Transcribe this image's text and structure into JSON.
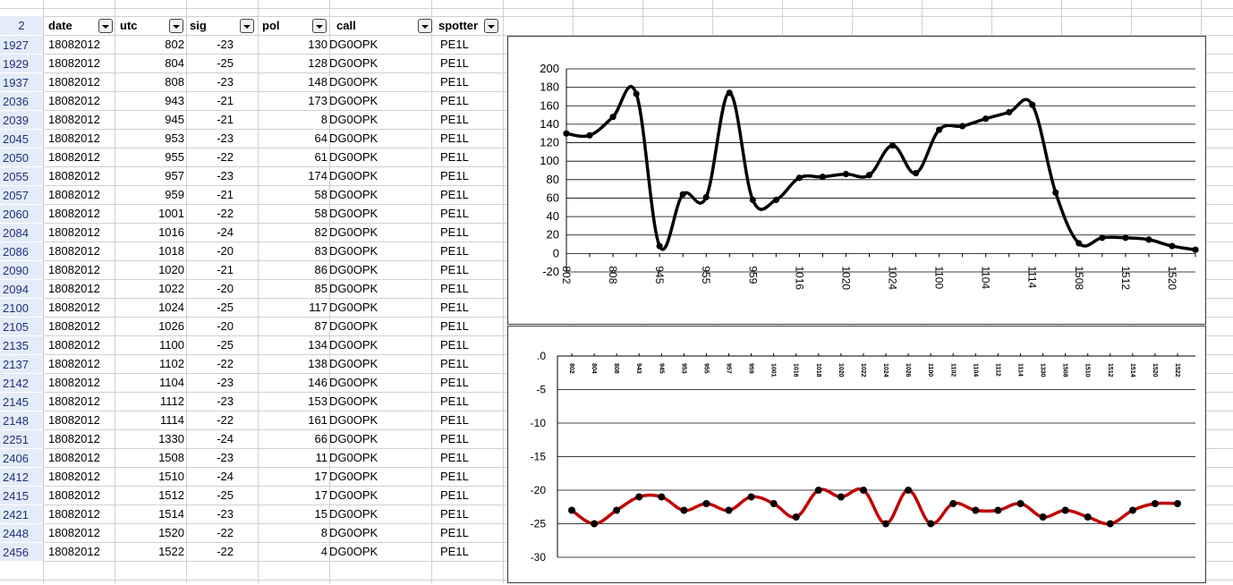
{
  "header": {
    "row_number": "2",
    "columns": [
      "date",
      "utc",
      "sig",
      "pol",
      "call",
      "spotter"
    ]
  },
  "rows": [
    {
      "id": "1927",
      "date": "18082012",
      "utc": "802",
      "sig": "-23",
      "pol": "130",
      "call": "DG0OPK",
      "spotter": "PE1L"
    },
    {
      "id": "1929",
      "date": "18082012",
      "utc": "804",
      "sig": "-25",
      "pol": "128",
      "call": "DG0OPK",
      "spotter": "PE1L"
    },
    {
      "id": "1937",
      "date": "18082012",
      "utc": "808",
      "sig": "-23",
      "pol": "148",
      "call": "DG0OPK",
      "spotter": "PE1L"
    },
    {
      "id": "2036",
      "date": "18082012",
      "utc": "943",
      "sig": "-21",
      "pol": "173",
      "call": "DG0OPK",
      "spotter": "PE1L"
    },
    {
      "id": "2039",
      "date": "18082012",
      "utc": "945",
      "sig": "-21",
      "pol": "8",
      "call": "DG0OPK",
      "spotter": "PE1L"
    },
    {
      "id": "2045",
      "date": "18082012",
      "utc": "953",
      "sig": "-23",
      "pol": "64",
      "call": "DG0OPK",
      "spotter": "PE1L"
    },
    {
      "id": "2050",
      "date": "18082012",
      "utc": "955",
      "sig": "-22",
      "pol": "61",
      "call": "DG0OPK",
      "spotter": "PE1L"
    },
    {
      "id": "2055",
      "date": "18082012",
      "utc": "957",
      "sig": "-23",
      "pol": "174",
      "call": "DG0OPK",
      "spotter": "PE1L"
    },
    {
      "id": "2057",
      "date": "18082012",
      "utc": "959",
      "sig": "-21",
      "pol": "58",
      "call": "DG0OPK",
      "spotter": "PE1L"
    },
    {
      "id": "2060",
      "date": "18082012",
      "utc": "1001",
      "sig": "-22",
      "pol": "58",
      "call": "DG0OPK",
      "spotter": "PE1L"
    },
    {
      "id": "2084",
      "date": "18082012",
      "utc": "1016",
      "sig": "-24",
      "pol": "82",
      "call": "DG0OPK",
      "spotter": "PE1L"
    },
    {
      "id": "2086",
      "date": "18082012",
      "utc": "1018",
      "sig": "-20",
      "pol": "83",
      "call": "DG0OPK",
      "spotter": "PE1L"
    },
    {
      "id": "2090",
      "date": "18082012",
      "utc": "1020",
      "sig": "-21",
      "pol": "86",
      "call": "DG0OPK",
      "spotter": "PE1L"
    },
    {
      "id": "2094",
      "date": "18082012",
      "utc": "1022",
      "sig": "-20",
      "pol": "85",
      "call": "DG0OPK",
      "spotter": "PE1L"
    },
    {
      "id": "2100",
      "date": "18082012",
      "utc": "1024",
      "sig": "-25",
      "pol": "117",
      "call": "DG0OPK",
      "spotter": "PE1L"
    },
    {
      "id": "2105",
      "date": "18082012",
      "utc": "1026",
      "sig": "-20",
      "pol": "87",
      "call": "DG0OPK",
      "spotter": "PE1L"
    },
    {
      "id": "2135",
      "date": "18082012",
      "utc": "1100",
      "sig": "-25",
      "pol": "134",
      "call": "DG0OPK",
      "spotter": "PE1L"
    },
    {
      "id": "2137",
      "date": "18082012",
      "utc": "1102",
      "sig": "-22",
      "pol": "138",
      "call": "DG0OPK",
      "spotter": "PE1L"
    },
    {
      "id": "2142",
      "date": "18082012",
      "utc": "1104",
      "sig": "-23",
      "pol": "146",
      "call": "DG0OPK",
      "spotter": "PE1L"
    },
    {
      "id": "2145",
      "date": "18082012",
      "utc": "1112",
      "sig": "-23",
      "pol": "153",
      "call": "DG0OPK",
      "spotter": "PE1L"
    },
    {
      "id": "2148",
      "date": "18082012",
      "utc": "1114",
      "sig": "-22",
      "pol": "161",
      "call": "DG0OPK",
      "spotter": "PE1L"
    },
    {
      "id": "2251",
      "date": "18082012",
      "utc": "1330",
      "sig": "-24",
      "pol": "66",
      "call": "DG0OPK",
      "spotter": "PE1L"
    },
    {
      "id": "2406",
      "date": "18082012",
      "utc": "1508",
      "sig": "-23",
      "pol": "11",
      "call": "DG0OPK",
      "spotter": "PE1L"
    },
    {
      "id": "2412",
      "date": "18082012",
      "utc": "1510",
      "sig": "-24",
      "pol": "17",
      "call": "DG0OPK",
      "spotter": "PE1L"
    },
    {
      "id": "2415",
      "date": "18082012",
      "utc": "1512",
      "sig": "-25",
      "pol": "17",
      "call": "DG0OPK",
      "spotter": "PE1L"
    },
    {
      "id": "2421",
      "date": "18082012",
      "utc": "1514",
      "sig": "-23",
      "pol": "15",
      "call": "DG0OPK",
      "spotter": "PE1L"
    },
    {
      "id": "2448",
      "date": "18082012",
      "utc": "1520",
      "sig": "-22",
      "pol": "8",
      "call": "DG0OPK",
      "spotter": "PE1L"
    },
    {
      "id": "2456",
      "date": "18082012",
      "utc": "1522",
      "sig": "-22",
      "pol": "4",
      "call": "DG0OPK",
      "spotter": "PE1L"
    }
  ],
  "colors": {
    "rownum_text": "#203080",
    "rownum_bg": "#e4ecf7",
    "gridline": "#d0d0d0",
    "pol_line": "#000000",
    "sig_line": "#c00000",
    "marker": "#000000"
  },
  "chart_data": [
    {
      "type": "line",
      "categories": [
        "802",
        "804",
        "808",
        "943",
        "945",
        "953",
        "955",
        "957",
        "959",
        "1001",
        "1016",
        "1018",
        "1020",
        "1022",
        "1024",
        "1026",
        "1100",
        "1102",
        "1104",
        "1112",
        "1114",
        "1330",
        "1508",
        "1510",
        "1512",
        "1514",
        "1520",
        "1522"
      ],
      "tick_labels": [
        "802",
        "808",
        "945",
        "955",
        "959",
        "1016",
        "1020",
        "1024",
        "1100",
        "1104",
        "1114",
        "1508",
        "1512",
        "1520"
      ],
      "values": [
        130,
        128,
        148,
        173,
        8,
        64,
        61,
        174,
        58,
        58,
        82,
        83,
        86,
        85,
        117,
        87,
        134,
        138,
        146,
        153,
        161,
        66,
        11,
        17,
        17,
        15,
        8,
        4
      ],
      "ylim": [
        -20,
        200
      ],
      "yticks": [
        "200",
        "180",
        "160",
        "140",
        "120",
        "100",
        "80",
        "60",
        "40",
        "20",
        "0",
        "-20"
      ],
      "grid": true,
      "smooth": true
    },
    {
      "type": "line",
      "categories": [
        "802",
        "804",
        "808",
        "943",
        "945",
        "953",
        "955",
        "957",
        "959",
        "1001",
        "1016",
        "1018",
        "1020",
        "1022",
        "1024",
        "1026",
        "1100",
        "1102",
        "1104",
        "1112",
        "1114",
        "1330",
        "1508",
        "1510",
        "1512",
        "1514",
        "1520",
        "1522"
      ],
      "values": [
        -23,
        -25,
        -23,
        -21,
        -21,
        -23,
        -22,
        -23,
        -21,
        -22,
        -24,
        -20,
        -21,
        -20,
        -25,
        -20,
        -25,
        -22,
        -23,
        -23,
        -22,
        -24,
        -23,
        -24,
        -25,
        -23,
        -22,
        -22
      ],
      "ylim": [
        -30,
        0
      ],
      "yticks": [
        ".0",
        "-5",
        "-10",
        "-15",
        "-20",
        "-25",
        "-30"
      ],
      "x_axis_position": "top",
      "grid": true,
      "smooth": true
    }
  ]
}
